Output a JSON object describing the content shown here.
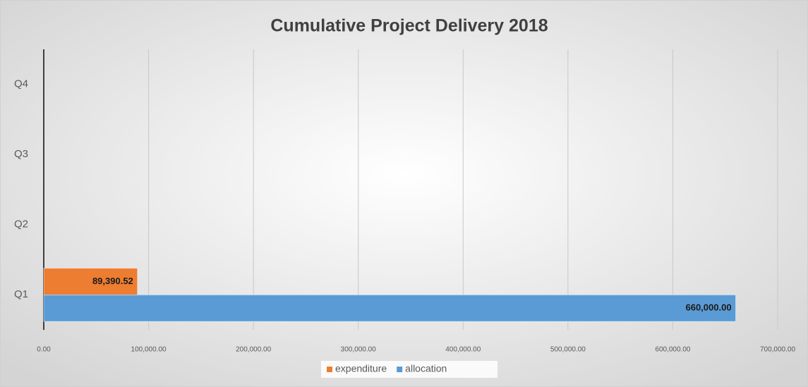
{
  "chart_data": {
    "type": "hbar",
    "title": "Cumulative Project Delivery 2018",
    "categories": [
      "Q1",
      "Q2",
      "Q3",
      "Q4"
    ],
    "series": [
      {
        "name": "expenditure",
        "color": "#ed7d31",
        "values": [
          89390.52,
          null,
          null,
          null
        ],
        "value_labels": [
          "89,390.52",
          null,
          null,
          null
        ]
      },
      {
        "name": "allocation",
        "color": "#5b9bd5",
        "values": [
          660000,
          null,
          null,
          null
        ],
        "value_labels": [
          "660,000.00",
          null,
          null,
          null
        ]
      }
    ],
    "xlim": [
      0,
      700000
    ],
    "xticks": [
      {
        "value": 0,
        "label": "0.00"
      },
      {
        "value": 100000,
        "label": "100,000.00"
      },
      {
        "value": 200000,
        "label": "200,000.00"
      },
      {
        "value": 300000,
        "label": "300,000.00"
      },
      {
        "value": 400000,
        "label": "400,000.00"
      },
      {
        "value": 500000,
        "label": "500,000.00"
      },
      {
        "value": 600000,
        "label": "600,000.00"
      },
      {
        "value": 700000,
        "label": "700,000.00"
      }
    ],
    "grid": true,
    "legend": "bottom"
  }
}
